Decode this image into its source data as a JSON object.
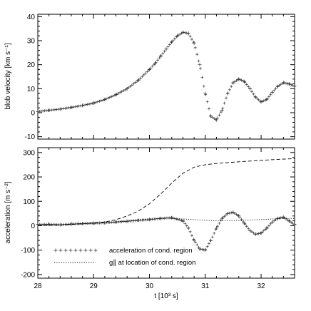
{
  "chart_data": [
    {
      "type": "scatter",
      "title": "",
      "xlabel": "",
      "ylabel": "blob velocity [km s⁻¹]",
      "xlim": [
        28.0,
        32.6
      ],
      "ylim": [
        -11,
        41
      ],
      "yticks": [
        -10,
        0,
        10,
        20,
        30,
        40
      ],
      "xticks": [
        28,
        29,
        30,
        31,
        32
      ],
      "show_xtick_labels": false,
      "grid": false,
      "series": [
        {
          "marker": "plus",
          "x": [
            28.0,
            28.2,
            28.4,
            28.6,
            28.8,
            29.0,
            29.2,
            29.4,
            29.6,
            29.8,
            30.0,
            30.1,
            30.2,
            30.3,
            30.4,
            30.5,
            30.6,
            30.7,
            30.8,
            30.9,
            31.0,
            31.1,
            31.2,
            31.3,
            31.4,
            31.5,
            31.6,
            31.7,
            31.8,
            31.9,
            32.0,
            32.1,
            32.2,
            32.3,
            32.4,
            32.5,
            32.6
          ],
          "values": [
            0.5,
            1.0,
            1.5,
            2.2,
            3.0,
            4.0,
            5.5,
            7.5,
            10.0,
            13.5,
            18.0,
            20.5,
            23.5,
            26.5,
            29.5,
            32.0,
            33.5,
            33.0,
            29.0,
            20.0,
            8.0,
            -1.5,
            -3.0,
            1.0,
            8.0,
            12.5,
            14.0,
            13.0,
            10.0,
            6.5,
            4.5,
            5.5,
            8.5,
            11.0,
            12.5,
            12.0,
            11.0
          ]
        }
      ]
    },
    {
      "type": "line",
      "title": "",
      "xlabel": "t [10³ s]",
      "ylabel": "acceleration [m s⁻²]",
      "xlim": [
        28.0,
        32.6
      ],
      "ylim": [
        -215,
        320
      ],
      "yticks": [
        -200,
        -100,
        0,
        100,
        200,
        300
      ],
      "xticks": [
        28,
        29,
        30,
        31,
        32
      ],
      "grid": false,
      "legend_position": "bottom-left",
      "series": [
        {
          "name": "acceleration of cond. region",
          "marker": "plus",
          "x": [
            28.0,
            28.2,
            28.4,
            28.6,
            28.8,
            29.0,
            29.2,
            29.4,
            29.6,
            29.8,
            30.0,
            30.2,
            30.4,
            30.6,
            30.7,
            30.8,
            30.9,
            31.0,
            31.1,
            31.2,
            31.3,
            31.4,
            31.5,
            31.6,
            31.7,
            31.8,
            31.9,
            32.0,
            32.1,
            32.2,
            32.3,
            32.4,
            32.5,
            32.6
          ],
          "values": [
            5,
            6,
            4,
            7,
            9,
            10,
            12,
            15,
            18,
            22,
            25,
            30,
            33,
            20,
            -10,
            -60,
            -95,
            -100,
            -60,
            -10,
            30,
            50,
            55,
            40,
            10,
            -20,
            -35,
            -30,
            -10,
            15,
            30,
            35,
            20,
            5
          ]
        },
        {
          "name": "g∥ at location of cond. region",
          "style": "dotted",
          "x": [
            28.0,
            28.4,
            28.8,
            29.2,
            29.6,
            30.0,
            30.4,
            30.8,
            31.2,
            31.6,
            32.0,
            32.4,
            32.6
          ],
          "values": [
            2,
            4,
            7,
            12,
            20,
            28,
            30,
            25,
            20,
            22,
            25,
            30,
            30
          ]
        },
        {
          "name": "",
          "style": "dashed",
          "x": [
            28.0,
            28.4,
            28.8,
            29.2,
            29.4,
            29.6,
            29.8,
            30.0,
            30.2,
            30.4,
            30.6,
            30.8,
            31.0,
            31.2,
            31.6,
            32.0,
            32.3,
            32.6
          ],
          "values": [
            0,
            3,
            8,
            15,
            25,
            40,
            60,
            90,
            130,
            175,
            215,
            240,
            250,
            255,
            262,
            268,
            272,
            275
          ]
        }
      ]
    }
  ]
}
